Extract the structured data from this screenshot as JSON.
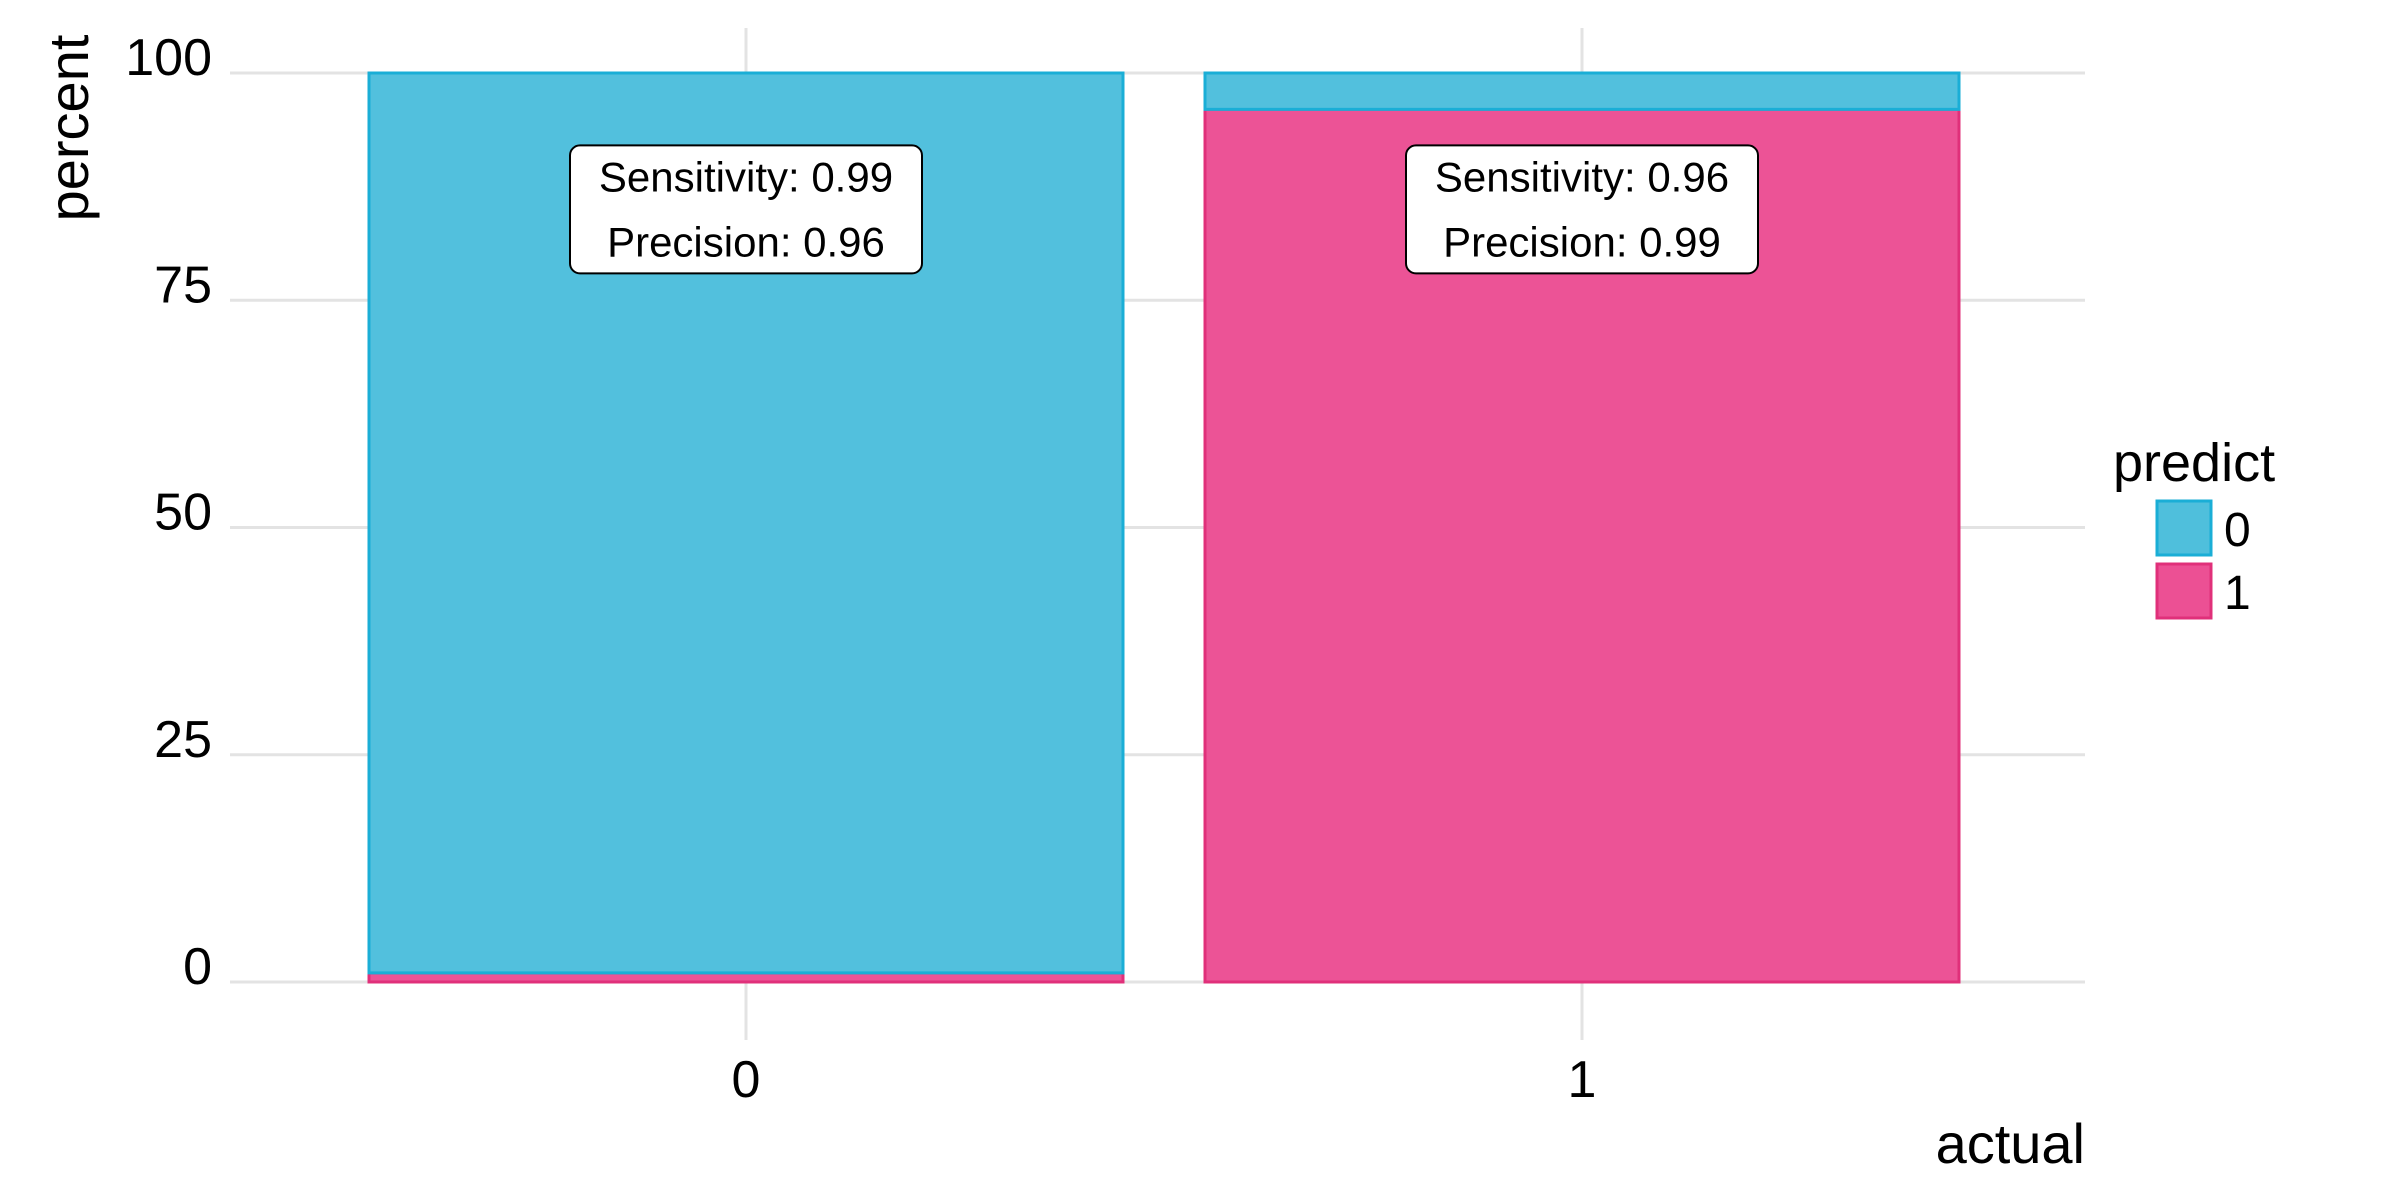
{
  "chart_data": {
    "type": "bar",
    "stacked": true,
    "categories": [
      "0",
      "1"
    ],
    "series": [
      {
        "name": "0",
        "color": "#4fbfdc",
        "stroke": "#1aaed6",
        "values": [
          99,
          4
        ]
      },
      {
        "name": "1",
        "color": "#ec5094",
        "stroke": "#e0307a",
        "values": [
          1,
          96
        ]
      }
    ],
    "xlabel": "actual",
    "ylabel": "percent",
    "ylim": [
      0,
      100
    ],
    "yticks": [
      0,
      25,
      50,
      75,
      100
    ],
    "grid": true,
    "legend": {
      "title": "predict",
      "position": "right"
    },
    "annotations": [
      {
        "category": "0",
        "lines": [
          "Sensitivity: 0.99",
          "Precision: 0.96"
        ],
        "y": 85
      },
      {
        "category": "1",
        "lines": [
          "Sensitivity: 0.96",
          "Precision: 0.99"
        ],
        "y": 85
      }
    ]
  }
}
